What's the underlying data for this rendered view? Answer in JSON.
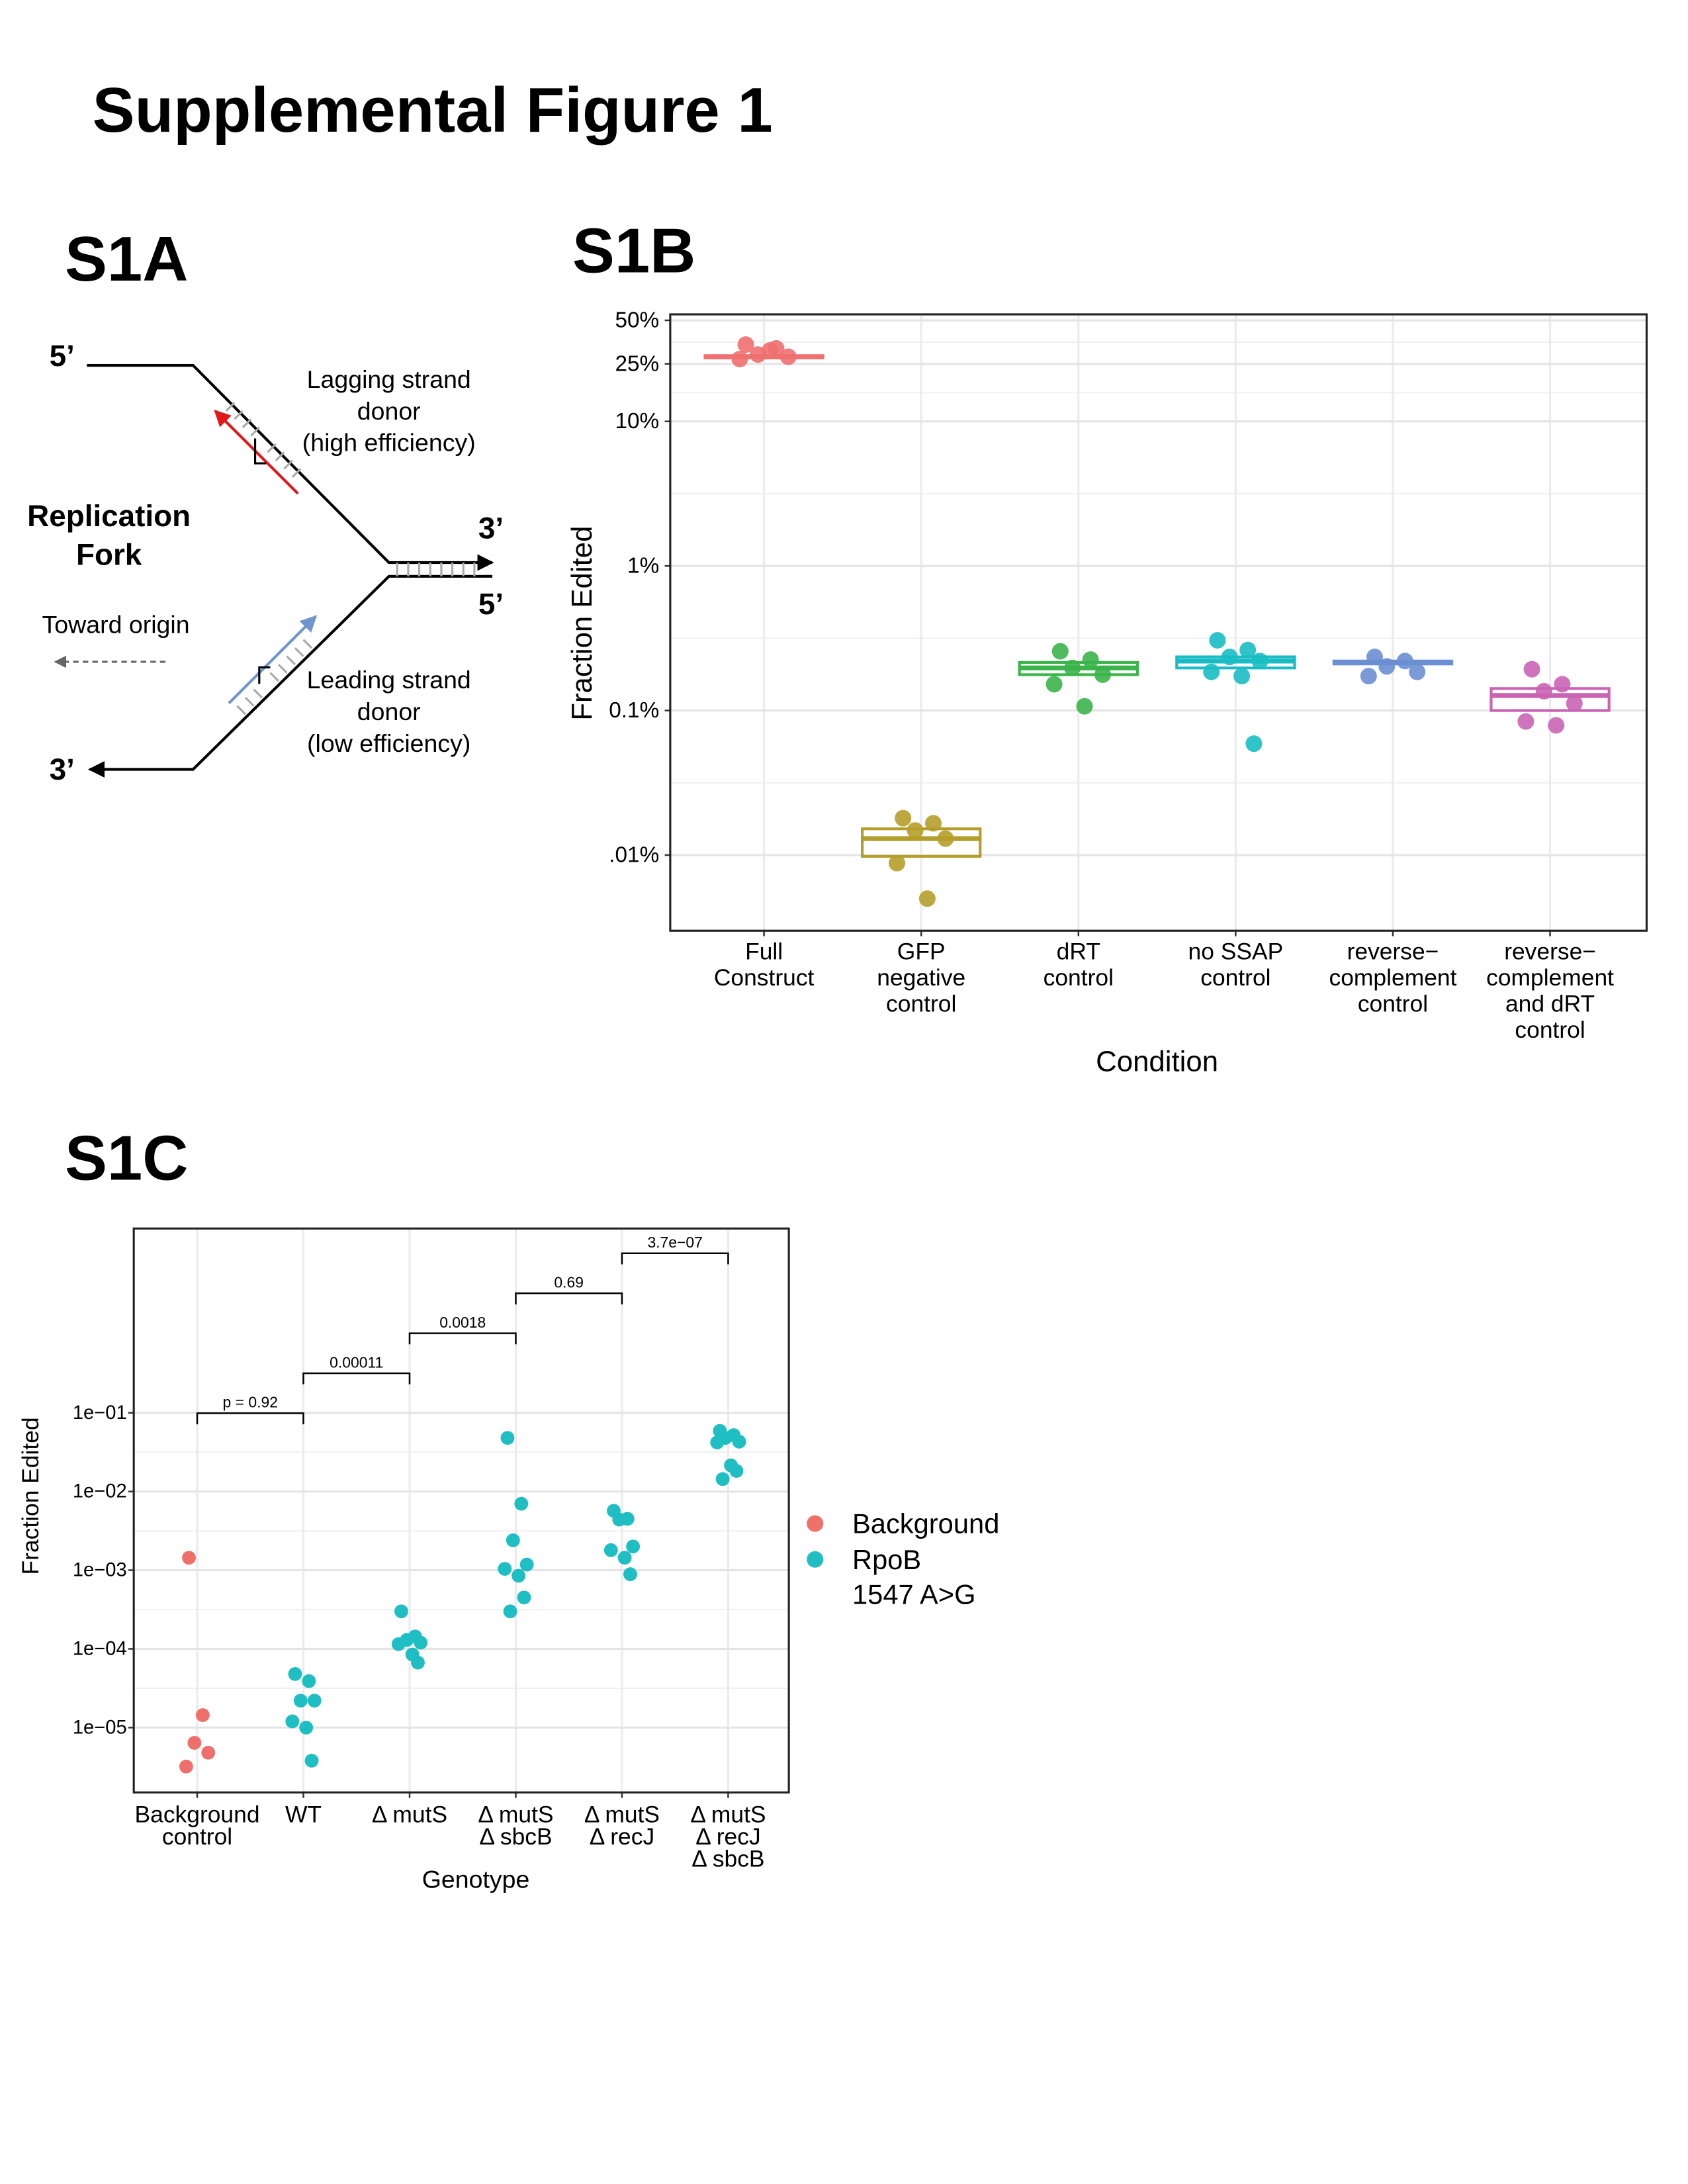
{
  "figure_title": "Supplemental Figure 1",
  "panel_a": {
    "label": "S1A",
    "strand_ends": [
      "5’",
      "3’",
      "5’",
      "3’"
    ],
    "fork_label": "Replication\nFork",
    "origin_label": "Toward origin",
    "lagging_label": "Lagging strand\ndonor\n(high efficiency)",
    "leading_label": "Leading strand\ndonor\n(low efficiency)"
  },
  "chart_data": [
    {
      "type": "box",
      "panel": "S1B",
      "x_label": "Condition",
      "y_label": "Fraction Edited",
      "log_y": true,
      "grid": true,
      "categories": [
        "Full\nConstruct",
        "GFP\nnegative\ncontrol",
        "dRT\ncontrol",
        "no SSAP\ncontrol",
        "reverse−\ncomplement\ncontrol",
        "reverse−\ncomplement\nand dRT\ncontrol"
      ],
      "colors": [
        "#f07070",
        "#b59e2a",
        "#3bb44a",
        "#19bcc4",
        "#6a8fd3",
        "#c964b5"
      ],
      "points": [
        [
          34,
          32,
          29,
          28,
          27,
          31
        ],
        [
          0.018,
          0.0166,
          0.0148,
          0.013,
          0.0088,
          0.005
        ],
        [
          0.257,
          0.225,
          0.197,
          0.177,
          0.152,
          0.107
        ],
        [
          0.306,
          0.262,
          0.235,
          0.22,
          0.185,
          0.173,
          0.059
        ],
        [
          0.235,
          0.22,
          0.202,
          0.185,
          0.173
        ],
        [
          0.193,
          0.152,
          0.136,
          0.112,
          0.084,
          0.079
        ]
      ],
      "q1": [
        27.5,
        0.0098,
        0.177,
        0.197,
        0.21,
        0.1
      ],
      "median": [
        28,
        0.013,
        0.197,
        0.22,
        0.215,
        0.127
      ],
      "q3": [
        28.5,
        0.0152,
        0.215,
        0.235,
        0.22,
        0.142
      ],
      "ylim": [
        0.003,
        55
      ],
      "yticks": [
        {
          "value": 0.01,
          "label": ".01%"
        },
        {
          "value": 0.1,
          "label": "0.1%"
        },
        {
          "value": 1,
          "label": "1%"
        },
        {
          "value": 10,
          "label": "10%"
        },
        {
          "value": 25,
          "label": "25%"
        },
        {
          "value": 50,
          "label": "50%"
        }
      ]
    },
    {
      "type": "scatter",
      "panel": "S1C",
      "x_label": "Genotype",
      "y_label": "Fraction Edited",
      "log_y": true,
      "grid": true,
      "legend": "right",
      "categories": [
        "Background\ncontrol",
        "WT",
        "Δ mutS",
        "Δ mutS\nΔ sbcB",
        "Δ mutS\nΔ recJ",
        "Δ mutS\nΔ recJ\nΔ sbcB"
      ],
      "series": [
        {
          "name": "Background",
          "color": "#ef6f6a",
          "values": [
            [
              0.00144,
              1.44e-05,
              6.4e-06,
              4.8e-06,
              3.2e-06
            ],
            [],
            [],
            [],
            [],
            []
          ]
        },
        {
          "name": "RpoB\n1547 A>G",
          "color": "#1fbec2",
          "values": [
            [],
            [
              4.8e-05,
              3.9e-05,
              2.2e-05,
              2.2e-05,
              1.2e-05,
              1e-05,
              3.8e-06
            ],
            [
              0.0003,
              0.000144,
              0.00013,
              0.00012,
              0.000115,
              8.5e-05,
              6.7e-05
            ],
            [
              0.048,
              0.007,
              0.0024,
              0.00118,
              0.00104,
              0.00085,
              0.00045,
              0.0003
            ],
            [
              0.0057,
              0.0045,
              0.0044,
              0.002,
              0.0018,
              0.00144,
              0.00089
            ],
            [
              0.059,
              0.052,
              0.048,
              0.043,
              0.042,
              0.0215,
              0.0183,
              0.0144
            ]
          ]
        }
      ],
      "comparisons": [
        "p = 0.92",
        "0.00011",
        "0.0018",
        "0.69",
        "3.7e−07"
      ],
      "ylim": [
        1.5e-06,
        22
      ],
      "yticks": [
        {
          "value": 1e-05,
          "label": "1e−05"
        },
        {
          "value": 0.0001,
          "label": "1e−04"
        },
        {
          "value": 0.001,
          "label": "1e−03"
        },
        {
          "value": 0.01,
          "label": "1e−02"
        },
        {
          "value": 0.1,
          "label": "1e−01"
        }
      ]
    }
  ]
}
